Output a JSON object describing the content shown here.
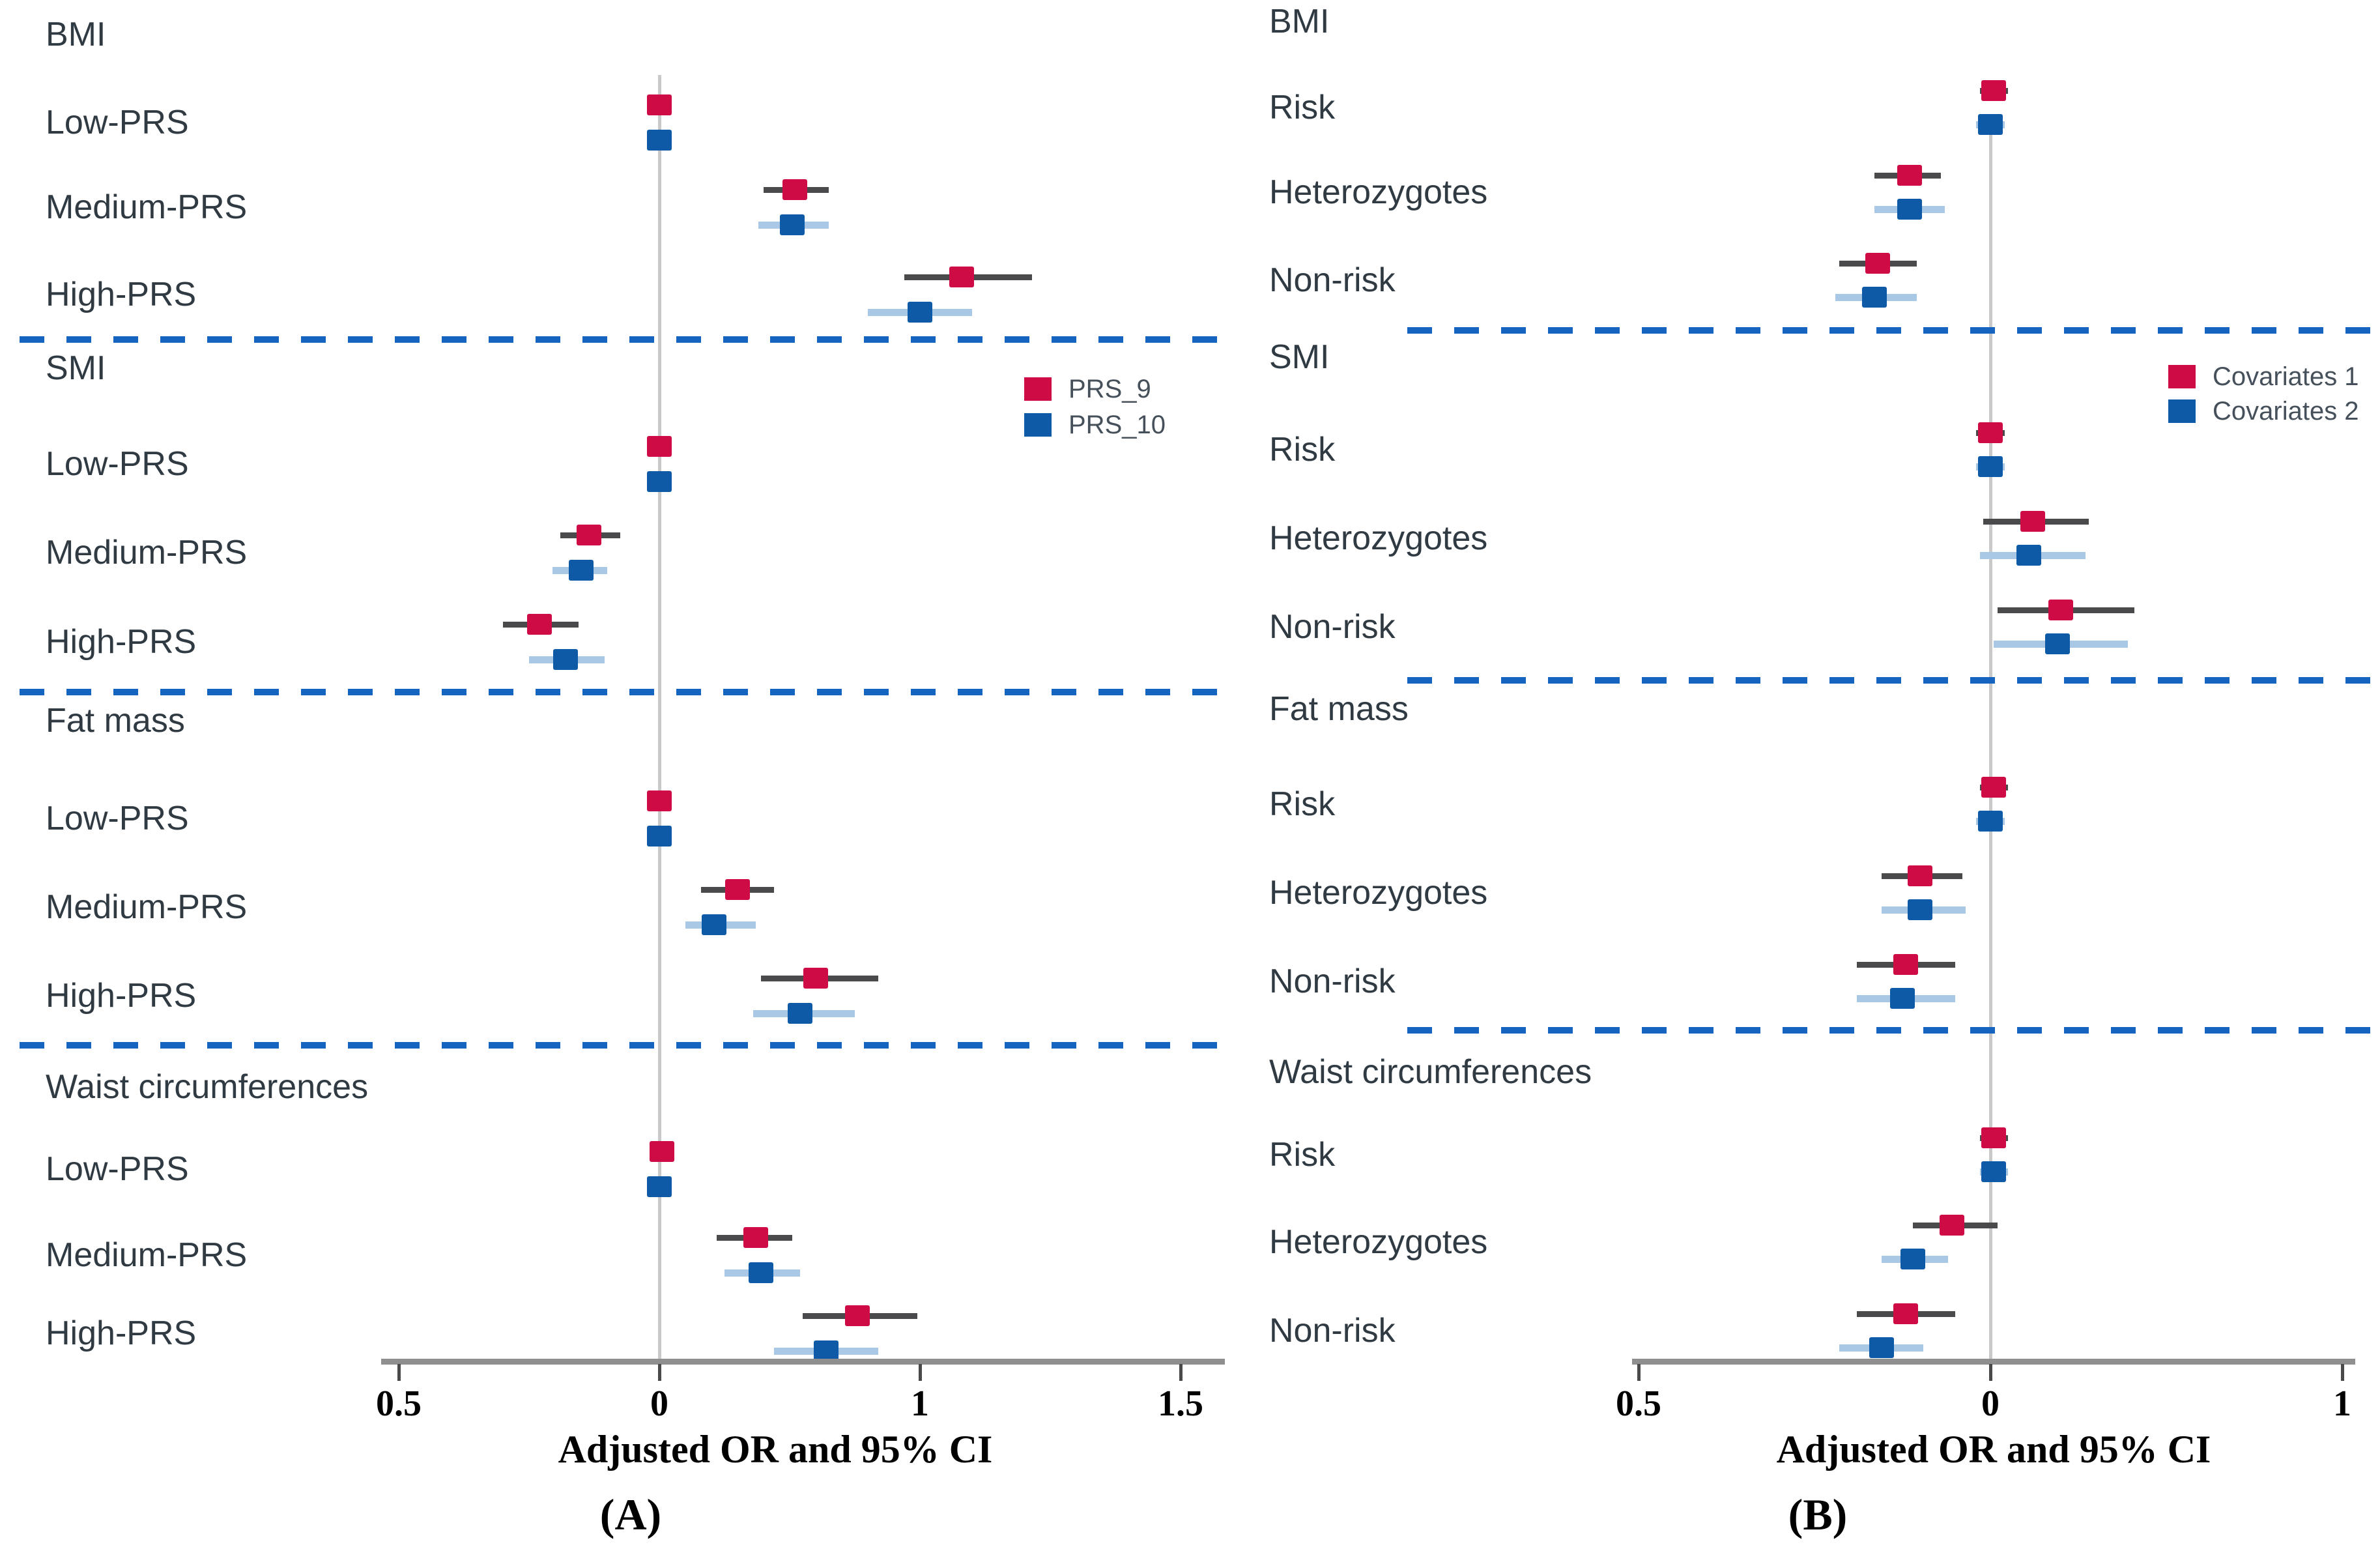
{
  "colors": {
    "red": "#ce0b44",
    "blue": "#0e5aa7",
    "light_blue": "#a8c8e6",
    "ci_gray": "#4a4a4c",
    "axis_gray": "#8f8f8f",
    "ref_gray": "#c9c9c9",
    "dash_blue": "#1565c0",
    "label_text": "#303a42",
    "legend_text": "#45505a"
  },
  "chart_data": [
    {
      "id": "A",
      "tag": "(A)",
      "type": "scatter",
      "subtype": "forest-plot",
      "xlabel": "Adjusted OR and 95% CI",
      "x_tick_labels": [
        "0.5",
        "0",
        "1",
        "1.5"
      ],
      "x_tick_positions": [
        -1,
        0,
        1,
        2
      ],
      "value_note": "point positions in tick-gap units relative to vertical reference line (tick labeled 0)",
      "grid": "single vertical reference line at 0",
      "legend_position": "right of BMI/SMI divider, upper middle",
      "series": [
        "PRS_9",
        "PRS_10"
      ],
      "series_colors": [
        "red",
        "blue"
      ],
      "sections": [
        {
          "title": "BMI",
          "rows": [
            {
              "label": "Low-PRS",
              "points": [
                {
                  "or": 0.0,
                  "ci": [
                    -0.04,
                    0.04
                  ]
                },
                {
                  "or": 0.0,
                  "ci": [
                    -0.04,
                    0.04
                  ]
                }
              ]
            },
            {
              "label": "Medium-PRS",
              "points": [
                {
                  "or": 0.52,
                  "ci": [
                    0.4,
                    0.65
                  ]
                },
                {
                  "or": 0.51,
                  "ci": [
                    0.38,
                    0.65
                  ]
                }
              ]
            },
            {
              "label": "High-PRS",
              "points": [
                {
                  "or": 1.16,
                  "ci": [
                    0.94,
                    1.43
                  ]
                },
                {
                  "or": 1.0,
                  "ci": [
                    0.8,
                    1.2
                  ]
                }
              ]
            }
          ]
        },
        {
          "title": "SMI",
          "rows": [
            {
              "label": "Low-PRS",
              "points": [
                {
                  "or": 0.0,
                  "ci": [
                    -0.04,
                    0.04
                  ]
                },
                {
                  "or": 0.0,
                  "ci": [
                    -0.04,
                    0.04
                  ]
                }
              ]
            },
            {
              "label": "Medium-PRS",
              "points": [
                {
                  "or": -0.27,
                  "ci": [
                    -0.38,
                    -0.15
                  ]
                },
                {
                  "or": -0.3,
                  "ci": [
                    -0.41,
                    -0.2
                  ]
                }
              ]
            },
            {
              "label": "High-PRS",
              "points": [
                {
                  "or": -0.46,
                  "ci": [
                    -0.6,
                    -0.31
                  ]
                },
                {
                  "or": -0.36,
                  "ci": [
                    -0.5,
                    -0.21
                  ]
                }
              ]
            }
          ]
        },
        {
          "title": "Fat mass",
          "rows": [
            {
              "label": "Low-PRS",
              "points": [
                {
                  "or": 0.0,
                  "ci": [
                    -0.04,
                    0.04
                  ]
                },
                {
                  "or": 0.0,
                  "ci": [
                    -0.04,
                    0.04
                  ]
                }
              ]
            },
            {
              "label": "Medium-PRS",
              "points": [
                {
                  "or": 0.3,
                  "ci": [
                    0.16,
                    0.44
                  ]
                },
                {
                  "or": 0.21,
                  "ci": [
                    0.1,
                    0.37
                  ]
                }
              ]
            },
            {
              "label": "High-PRS",
              "points": [
                {
                  "or": 0.6,
                  "ci": [
                    0.39,
                    0.84
                  ]
                },
                {
                  "or": 0.54,
                  "ci": [
                    0.36,
                    0.75
                  ]
                }
              ]
            }
          ]
        },
        {
          "title": "Waist circumferences",
          "rows": [
            {
              "label": "Low-PRS",
              "points": [
                {
                  "or": 0.01,
                  "ci": [
                    -0.03,
                    0.05
                  ]
                },
                {
                  "or": 0.0,
                  "ci": [
                    -0.04,
                    0.04
                  ]
                }
              ]
            },
            {
              "label": "Medium-PRS",
              "points": [
                {
                  "or": 0.37,
                  "ci": [
                    0.22,
                    0.51
                  ]
                },
                {
                  "or": 0.39,
                  "ci": [
                    0.25,
                    0.54
                  ]
                }
              ]
            },
            {
              "label": "High-PRS",
              "points": [
                {
                  "or": 0.76,
                  "ci": [
                    0.55,
                    0.99
                  ]
                },
                {
                  "or": 0.64,
                  "ci": [
                    0.44,
                    0.84
                  ]
                }
              ]
            }
          ]
        }
      ]
    },
    {
      "id": "B",
      "tag": "(B)",
      "type": "scatter",
      "subtype": "forest-plot",
      "xlabel": "Adjusted OR and 95% CI",
      "x_tick_labels": [
        "0.5",
        "0",
        "1"
      ],
      "x_tick_positions": [
        -1,
        0,
        1
      ],
      "value_note": "point positions in tick-gap units relative to vertical reference line (tick labeled 0)",
      "grid": "single vertical reference line at 0",
      "legend_position": "right of BMI/SMI divider, upper middle",
      "series": [
        "Covariates 1",
        "Covariates 2"
      ],
      "series_colors": [
        "red",
        "blue"
      ],
      "sections": [
        {
          "title": "BMI",
          "rows": [
            {
              "label": "Risk",
              "points": [
                {
                  "or": 0.01,
                  "ci": [
                    -0.03,
                    0.05
                  ]
                },
                {
                  "or": 0.0,
                  "ci": [
                    -0.04,
                    0.04
                  ]
                }
              ]
            },
            {
              "label": "Heterozygotes",
              "points": [
                {
                  "or": -0.23,
                  "ci": [
                    -0.33,
                    -0.14
                  ]
                },
                {
                  "or": -0.23,
                  "ci": [
                    -0.33,
                    -0.13
                  ]
                }
              ]
            },
            {
              "label": "Non-risk",
              "points": [
                {
                  "or": -0.32,
                  "ci": [
                    -0.43,
                    -0.21
                  ]
                },
                {
                  "or": -0.33,
                  "ci": [
                    -0.44,
                    -0.21
                  ]
                }
              ]
            }
          ]
        },
        {
          "title": "SMI",
          "rows": [
            {
              "label": "Risk",
              "points": [
                {
                  "or": 0.0,
                  "ci": [
                    -0.04,
                    0.04
                  ]
                },
                {
                  "or": 0.0,
                  "ci": [
                    -0.04,
                    0.04
                  ]
                }
              ]
            },
            {
              "label": "Heterozygotes",
              "points": [
                {
                  "or": 0.12,
                  "ci": [
                    -0.02,
                    0.28
                  ]
                },
                {
                  "or": 0.11,
                  "ci": [
                    -0.03,
                    0.27
                  ]
                }
              ]
            },
            {
              "label": "Non-risk",
              "points": [
                {
                  "or": 0.2,
                  "ci": [
                    0.02,
                    0.41
                  ]
                },
                {
                  "or": 0.19,
                  "ci": [
                    0.01,
                    0.39
                  ]
                }
              ]
            }
          ]
        },
        {
          "title": "Fat mass",
          "rows": [
            {
              "label": "Risk",
              "points": [
                {
                  "or": 0.01,
                  "ci": [
                    -0.03,
                    0.05
                  ]
                },
                {
                  "or": 0.0,
                  "ci": [
                    -0.04,
                    0.04
                  ]
                }
              ]
            },
            {
              "label": "Heterozygotes",
              "points": [
                {
                  "or": -0.2,
                  "ci": [
                    -0.31,
                    -0.08
                  ]
                },
                {
                  "or": -0.2,
                  "ci": [
                    -0.31,
                    -0.07
                  ]
                }
              ]
            },
            {
              "label": "Non-risk",
              "points": [
                {
                  "or": -0.24,
                  "ci": [
                    -0.38,
                    -0.1
                  ]
                },
                {
                  "or": -0.25,
                  "ci": [
                    -0.38,
                    -0.1
                  ]
                }
              ]
            }
          ]
        },
        {
          "title": "Waist circumferences",
          "rows": [
            {
              "label": "Risk",
              "points": [
                {
                  "or": 0.01,
                  "ci": [
                    -0.03,
                    0.05
                  ]
                },
                {
                  "or": 0.01,
                  "ci": [
                    -0.03,
                    0.05
                  ]
                }
              ]
            },
            {
              "label": "Heterozygotes",
              "points": [
                {
                  "or": -0.11,
                  "ci": [
                    -0.22,
                    0.02
                  ]
                },
                {
                  "or": -0.22,
                  "ci": [
                    -0.31,
                    -0.12
                  ]
                }
              ]
            },
            {
              "label": "Non-risk",
              "points": [
                {
                  "or": -0.24,
                  "ci": [
                    -0.38,
                    -0.1
                  ]
                },
                {
                  "or": -0.31,
                  "ci": [
                    -0.43,
                    -0.19
                  ]
                }
              ]
            }
          ]
        }
      ]
    }
  ]
}
